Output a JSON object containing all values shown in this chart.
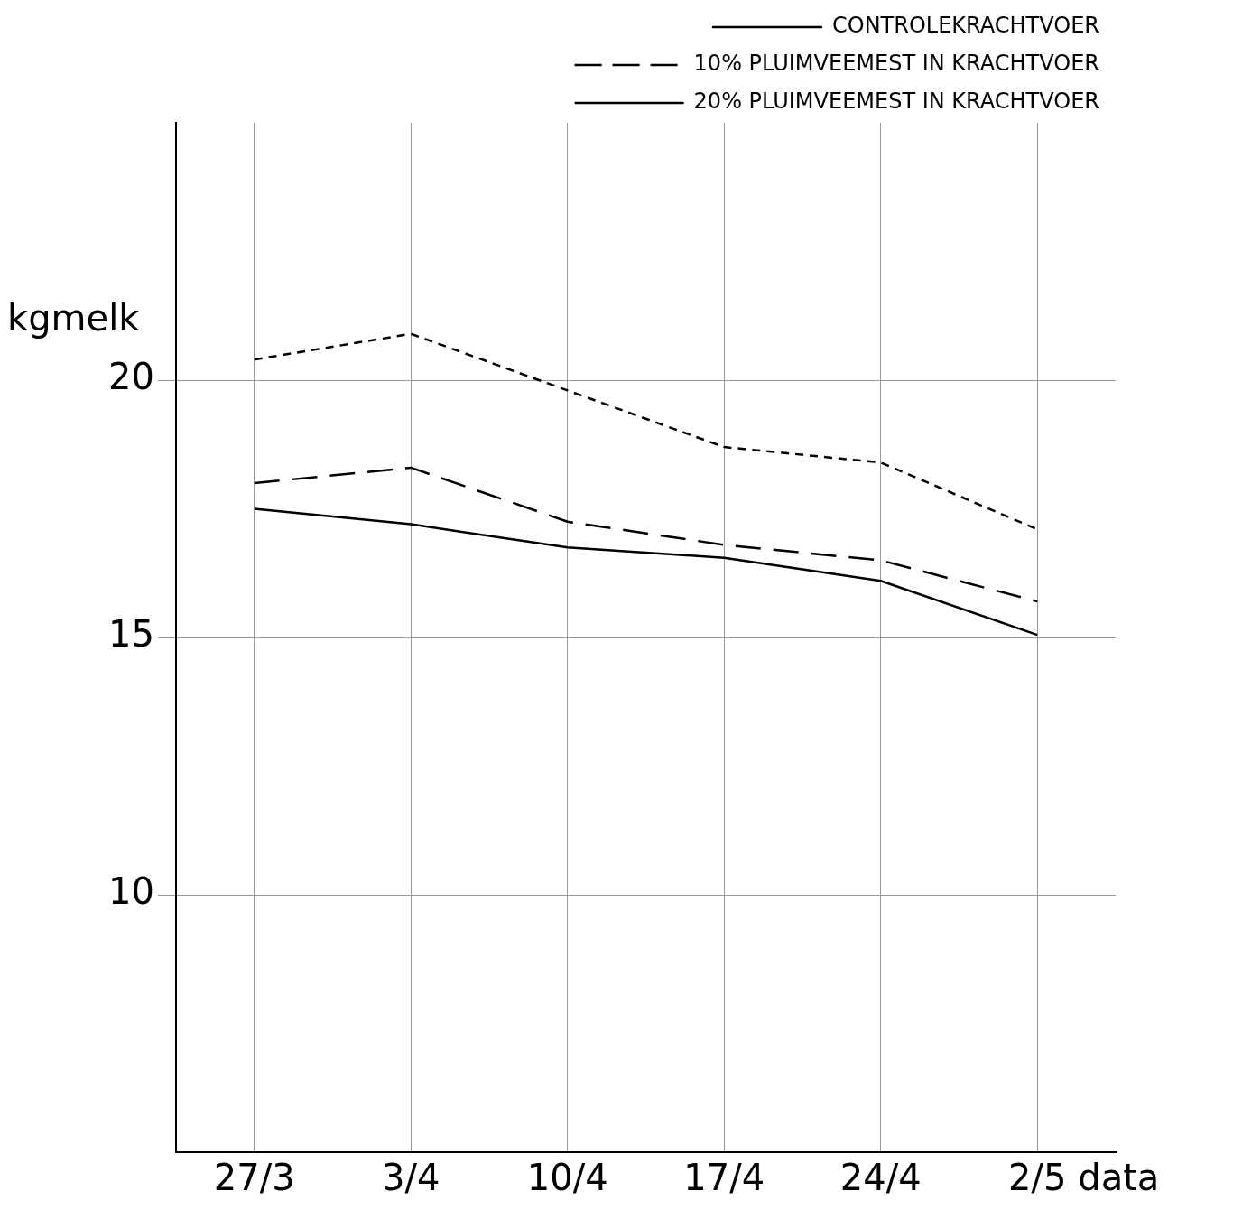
{
  "chart_data": {
    "type": "line",
    "xlabel": "data",
    "ylabel": "kgmelk",
    "categories": [
      "27/3",
      "3/4",
      "10/4",
      "17/4",
      "24/4",
      "2/5"
    ],
    "series": [
      {
        "name": "CONTROLEKRACHTVOER",
        "color": "#000000",
        "line_style": "solid",
        "values": [
          17.5,
          17.2,
          16.75,
          16.55,
          16.1,
          15.05
        ]
      },
      {
        "name": "10% PLUIMVEEMEST IN KRACHTVOER",
        "color": "#000000",
        "line_style": "dashed",
        "values": [
          18.0,
          18.3,
          17.25,
          16.8,
          16.5,
          15.7
        ]
      },
      {
        "name": "20% PLUIMVEEMEST IN KRACHTVOER",
        "color": "#000000",
        "line_style": "dotted",
        "values": [
          20.4,
          20.9,
          19.8,
          18.7,
          18.4,
          17.1
        ]
      }
    ],
    "ylim": [
      5,
      25
    ],
    "yticks": [
      10,
      15,
      20
    ],
    "grid": true,
    "legend": "top right",
    "marker": "none"
  }
}
